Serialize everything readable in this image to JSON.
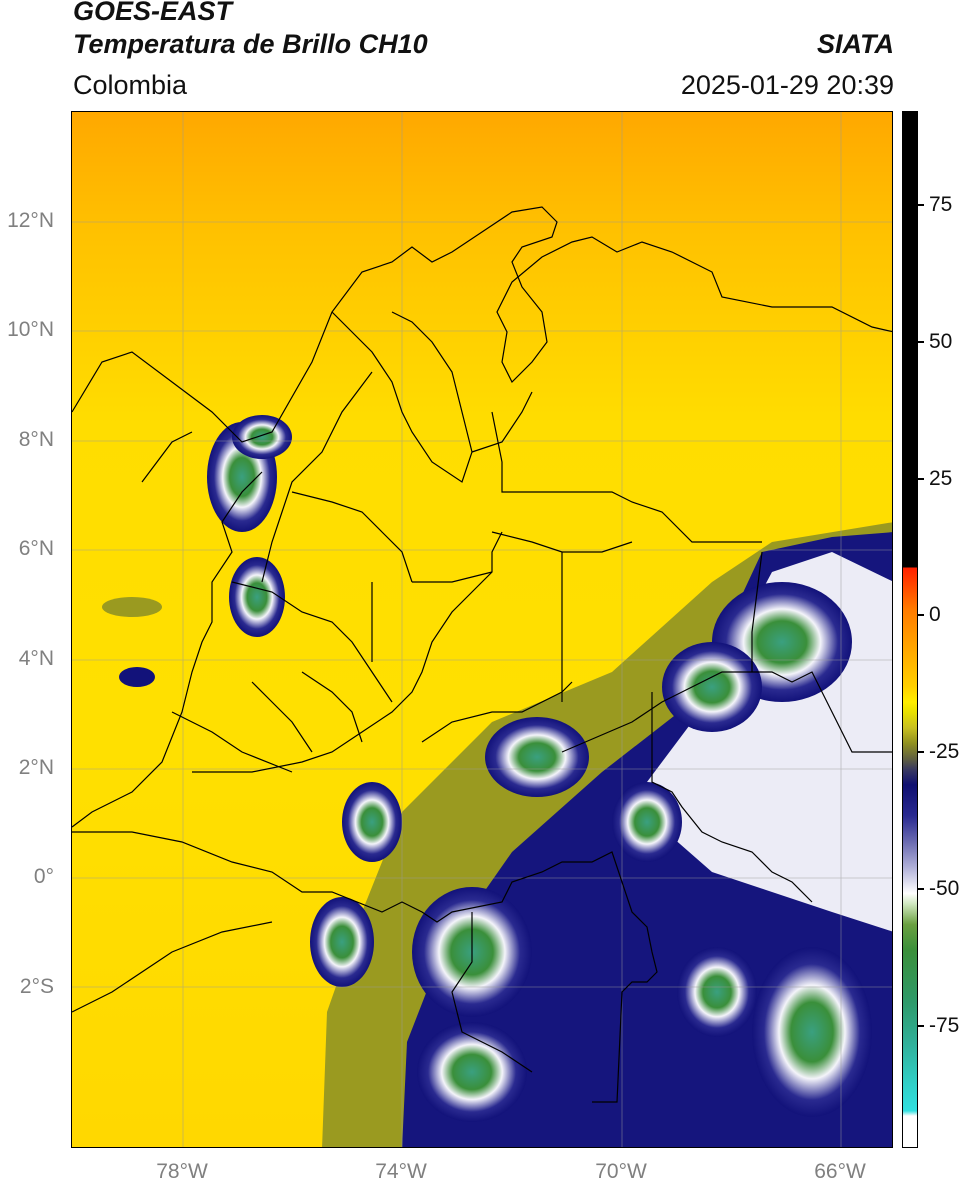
{
  "header": {
    "satellite": "GOES-EAST",
    "product": "Temperatura de Brillo CH10",
    "source": "SIATA",
    "region": "Colombia",
    "timestamp": "2025-01-29 20:39"
  },
  "map": {
    "lat_labels": [
      "12°N",
      "10°N",
      "8°N",
      "6°N",
      "4°N",
      "2°N",
      "0°",
      "2°S"
    ],
    "lon_labels": [
      "78°W",
      "74°W",
      "70°W",
      "66°W"
    ],
    "colors": {
      "warm_orange": "#ffa600",
      "yellow": "#ffe500",
      "olive": "#9a9a20",
      "navy": "#12127a",
      "white": "#ffffff",
      "green": "#3a8f3a",
      "teal": "#30b090"
    }
  },
  "colorbar": {
    "ticks": [
      "75",
      "50",
      "25",
      "0",
      "-25",
      "-50",
      "-75"
    ],
    "units": "",
    "range": [
      -95,
      90
    ]
  }
}
